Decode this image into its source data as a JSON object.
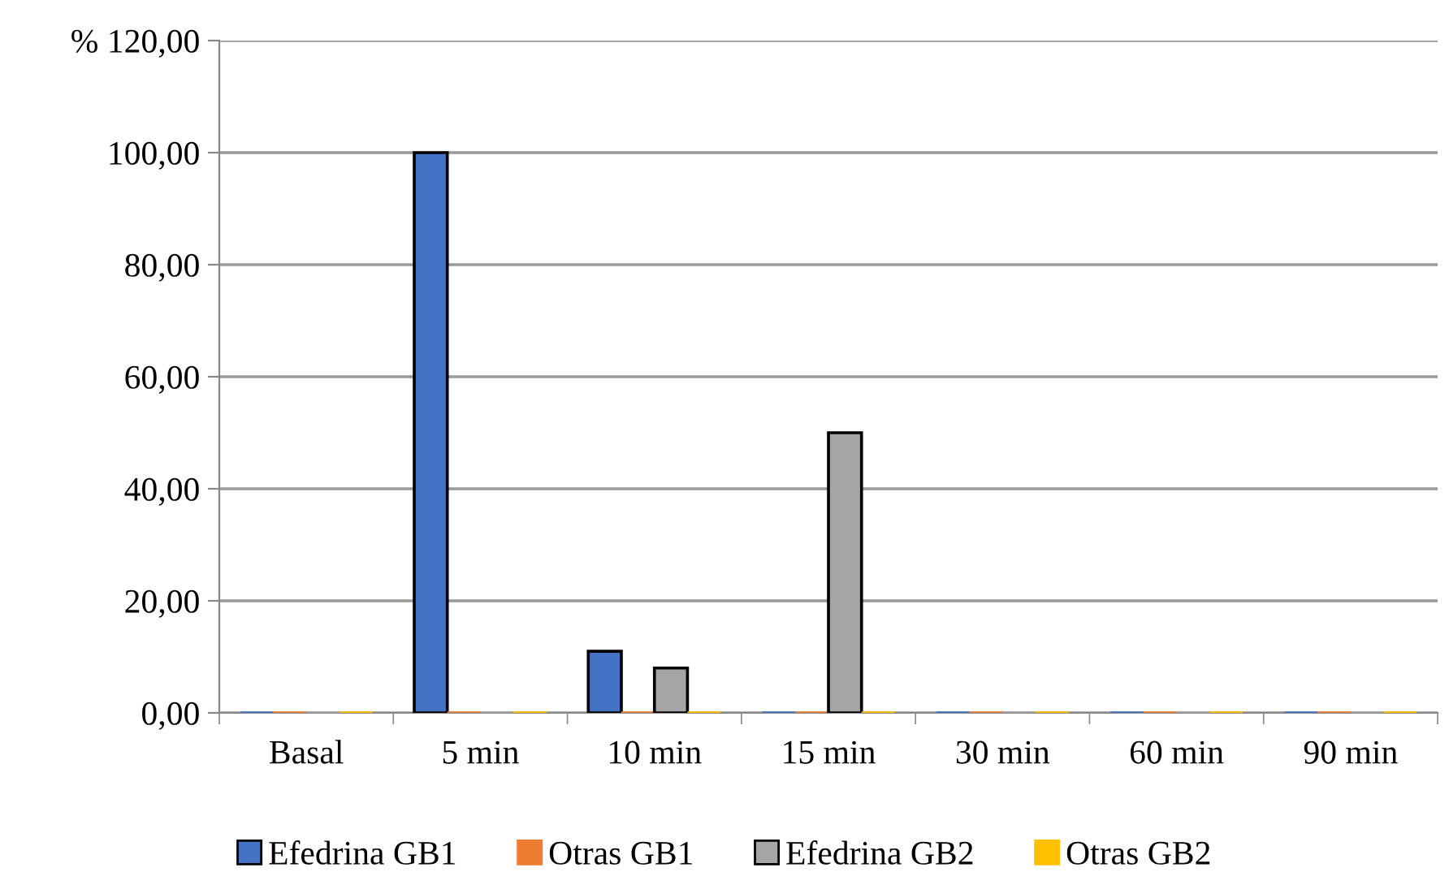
{
  "chart_data": {
    "type": "bar",
    "categories": [
      "Basal",
      "5 min",
      "10 min",
      "15 min",
      "30 min",
      "60 min",
      "90 min"
    ],
    "series": [
      {
        "name": "Efedrina GB1",
        "color": "#4472c4",
        "values": [
          0,
          100,
          11,
          0,
          0,
          0,
          0
        ]
      },
      {
        "name": "Otras GB1",
        "color": "#ed7d31",
        "values": [
          0,
          0,
          0,
          0,
          0,
          0,
          0
        ]
      },
      {
        "name": "Efedrina GB2",
        "color": "#a5a5a5",
        "values": [
          0,
          0,
          8,
          50,
          0,
          0,
          0
        ]
      },
      {
        "name": "Otras GB2",
        "color": "#ffc000",
        "values": [
          0,
          0,
          0,
          0,
          0,
          0,
          0
        ]
      }
    ],
    "ylim": [
      0,
      120
    ],
    "yticks": [
      {
        "value": 0,
        "label": "0,00"
      },
      {
        "value": 20,
        "label": "20,00"
      },
      {
        "value": 40,
        "label": "40,00"
      },
      {
        "value": 60,
        "label": "60,00"
      },
      {
        "value": 80,
        "label": "80,00"
      },
      {
        "value": 100,
        "label": "100,00"
      },
      {
        "value": 120,
        "label": "% 120,00"
      }
    ],
    "grid": "y",
    "legend": "bottom"
  }
}
